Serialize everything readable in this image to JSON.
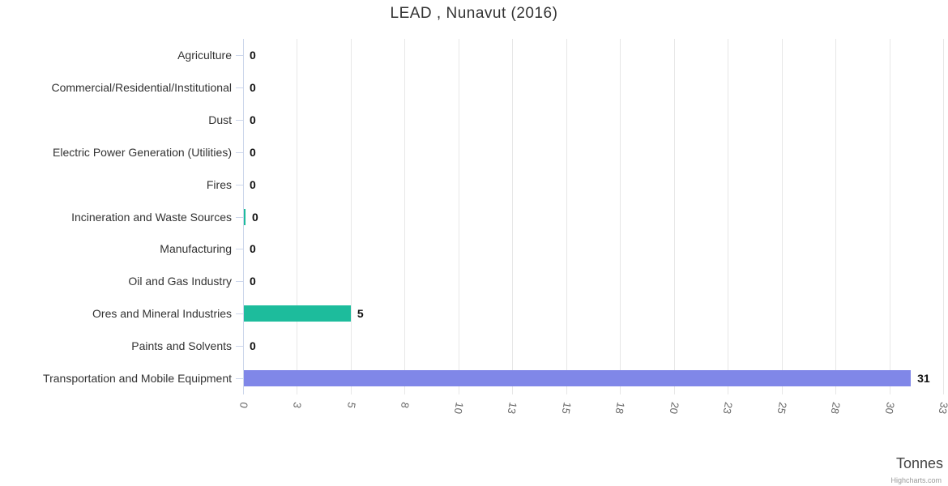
{
  "chart_data": {
    "type": "bar",
    "orientation": "horizontal",
    "title": "LEAD , Nunavut (2016)",
    "xlabel": "Tonnes",
    "credit": "Highcharts.com",
    "xlim": [
      0,
      32.5
    ],
    "grid": true,
    "legend": false,
    "categories": [
      "Agriculture",
      "Commercial/Residential/Institutional",
      "Dust",
      "Electric Power Generation (Utilities)",
      "Fires",
      "Incineration and Waste Sources",
      "Manufacturing",
      "Oil and Gas Industry",
      "Ores and Mineral Industries",
      "Paints and Solvents",
      "Transportation and Mobile Equipment"
    ],
    "values": [
      0,
      0,
      0,
      0,
      0,
      0.05,
      0,
      0,
      5,
      0,
      31
    ],
    "value_labels": [
      "0",
      "0",
      "0",
      "0",
      "0",
      "0",
      "0",
      "0",
      "5",
      "0",
      "31"
    ],
    "bar_colors": [
      "#8087E8",
      "#8087E8",
      "#8087E8",
      "#8087E8",
      "#8087E8",
      "#1DBC9C",
      "#8087E8",
      "#8087E8",
      "#1DBC9C",
      "#8087E8",
      "#8087E8"
    ],
    "tick_values": [
      0,
      2.5,
      5,
      7.5,
      10,
      12.5,
      15,
      17.5,
      20,
      22.5,
      25,
      27.5,
      30,
      32.5
    ],
    "tick_labels": [
      "0",
      "3",
      "5",
      "8",
      "10",
      "13",
      "15",
      "18",
      "20",
      "23",
      "25",
      "28",
      "30",
      "33"
    ],
    "colors": {
      "purple": "#8087E8",
      "teal": "#1DBC9C",
      "grid": "#e7e7e7",
      "axis_line": "#ccd6eb",
      "title_text": "#333333",
      "category_text": "#333333",
      "tick_text": "#666666",
      "data_label_text": "#111111",
      "axis_title_text": "#444444",
      "credit_text": "#999999"
    }
  }
}
